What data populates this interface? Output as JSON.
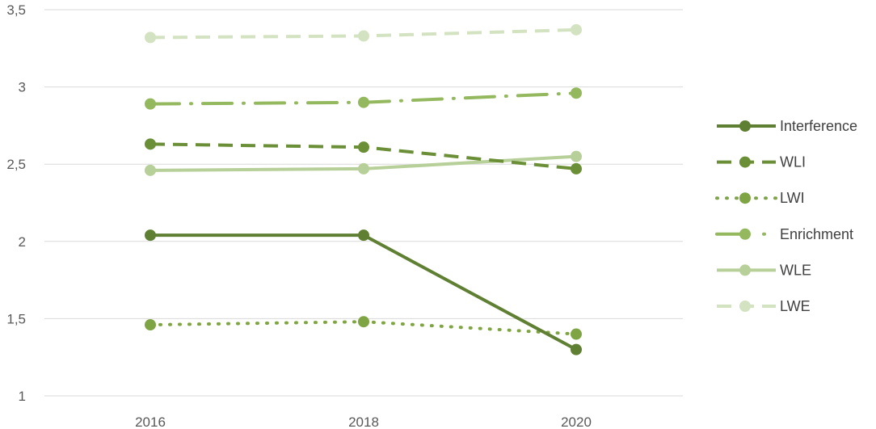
{
  "chart_data": {
    "type": "line",
    "title": "",
    "xlabel": "",
    "ylabel": "",
    "categories": [
      "2016",
      "2018",
      "2020"
    ],
    "ylim": [
      1,
      3.5
    ],
    "y_ticks": [
      "1",
      "1,5",
      "2",
      "2,5",
      "3",
      "3,5"
    ],
    "y_tick_values": [
      1,
      1.5,
      2,
      2.5,
      3,
      3.5
    ],
    "grid": true,
    "legend_position": "right",
    "series": [
      {
        "name": "Interference",
        "values": [
          2.04,
          2.04,
          1.3
        ],
        "color": "#5f7f32",
        "dash": "solid",
        "width": 4
      },
      {
        "name": "WLI",
        "values": [
          2.63,
          2.61,
          2.47
        ],
        "color": "#6a8f37",
        "dash": "dashed",
        "width": 4
      },
      {
        "name": "LWI",
        "values": [
          1.46,
          1.48,
          1.4
        ],
        "color": "#7fa444",
        "dash": "dotted",
        "width": 4
      },
      {
        "name": "Enrichment",
        "values": [
          2.89,
          2.9,
          2.96
        ],
        "color": "#93b85e",
        "dash": "longdashdot",
        "width": 4
      },
      {
        "name": "WLE",
        "values": [
          2.46,
          2.47,
          2.55
        ],
        "color": "#b7cf98",
        "dash": "solid",
        "width": 4
      },
      {
        "name": "LWE",
        "values": [
          3.32,
          3.33,
          3.37
        ],
        "color": "#d3e2c0",
        "dash": "dashed",
        "width": 4
      }
    ]
  }
}
